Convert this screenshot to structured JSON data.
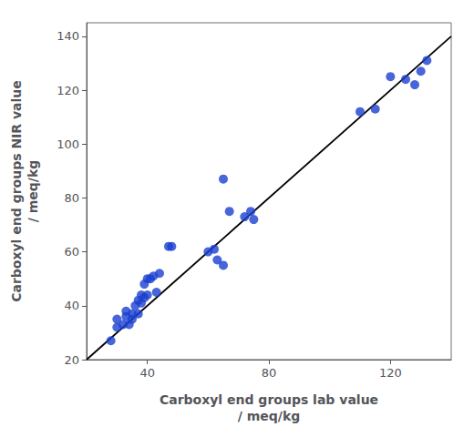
{
  "chart_data": {
    "type": "scatter",
    "xlabel": "Carboxyl end groups lab value\n/ meq/kg",
    "ylabel": "Carboxyl end groups NIR value\n/ meq/kg",
    "series": [
      {
        "type": "line",
        "color": "#000000",
        "x": [
          20,
          140
        ],
        "values": [
          20,
          140
        ]
      },
      {
        "type": "scatter",
        "color": "#1a40d0",
        "x": [
          28,
          30,
          30,
          32,
          33,
          33,
          34,
          35,
          35,
          36,
          37,
          37,
          38,
          38,
          39,
          39,
          40,
          40,
          41,
          42,
          43,
          44,
          47,
          48,
          60,
          62,
          63,
          65,
          65,
          67,
          72,
          74,
          75,
          110,
          115,
          120,
          125,
          128,
          130,
          132
        ],
        "values": [
          27,
          32,
          35,
          33,
          36,
          38,
          33,
          35,
          37,
          40,
          37,
          42,
          41,
          44,
          43,
          48,
          44,
          50,
          50,
          51,
          45,
          52,
          62,
          62,
          60,
          61,
          57,
          55,
          87,
          75,
          73,
          75,
          72,
          112,
          113,
          125,
          124,
          122,
          127,
          131
        ]
      }
    ],
    "xlim": [
      20,
      140
    ],
    "ylim": [
      20,
      145
    ],
    "xticks": [
      40,
      80,
      120
    ],
    "yticks": [
      20,
      40,
      60,
      80,
      100,
      120,
      140
    ],
    "grid": false
  }
}
